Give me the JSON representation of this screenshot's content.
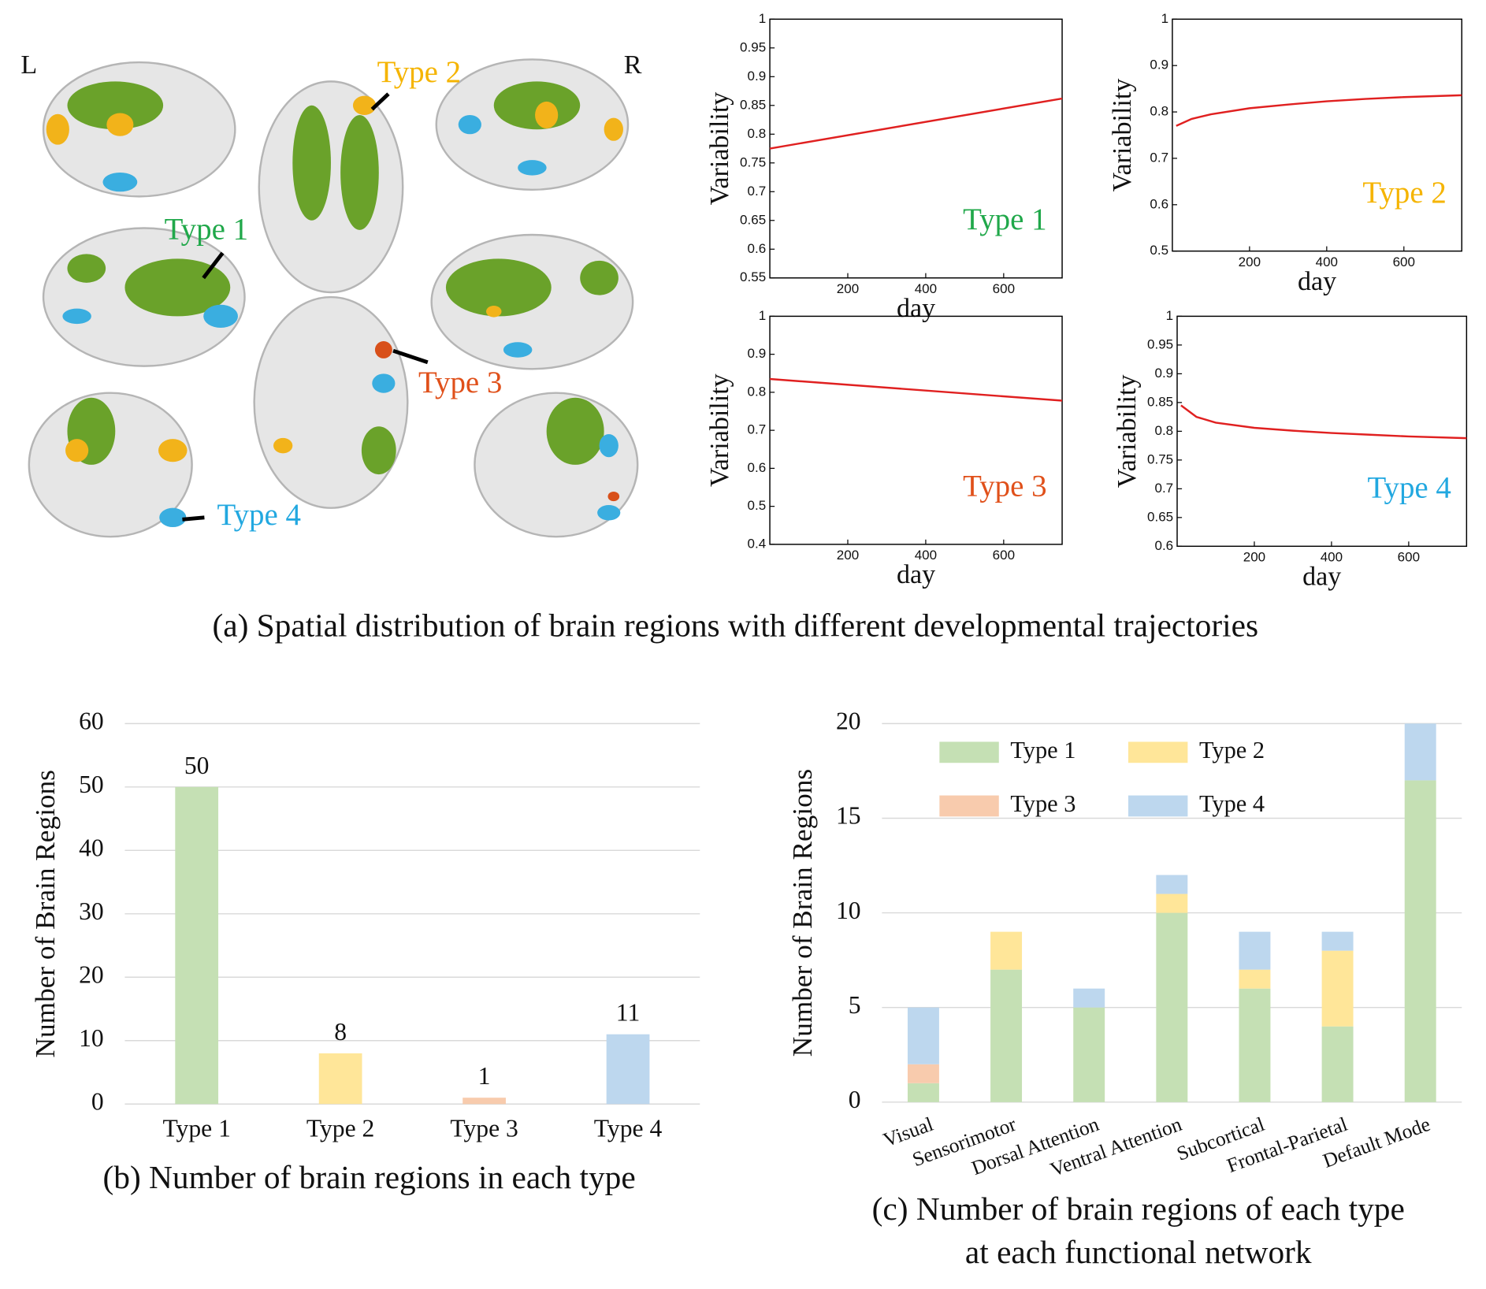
{
  "brain_panel": {
    "left_label": "L",
    "right_label": "R",
    "annotations": [
      {
        "text": "Type 1",
        "color": "#20a84a"
      },
      {
        "text": "Type 2",
        "color": "#f5b400"
      },
      {
        "text": "Type 3",
        "color": "#e0501a"
      },
      {
        "text": "Type 4",
        "color": "#22a8e0"
      }
    ],
    "caption": "(a) Spatial distribution of brain regions with different developmental trajectories"
  },
  "chart_data": [
    {
      "type": "line",
      "xlabel": "day",
      "ylabel": "Variability",
      "annotation": "Type 1",
      "annotation_color": "#20a84a",
      "xlim": [
        0,
        750
      ],
      "xticks": [
        200,
        400,
        600
      ],
      "ylim": [
        0.55,
        1
      ],
      "yticks": [
        0.55,
        0.6,
        0.65,
        0.7,
        0.75,
        0.8,
        0.85,
        0.9,
        0.95,
        1
      ],
      "series": [
        {
          "name": "fit",
          "color": "#e02020",
          "x": [
            0,
            750
          ],
          "values": [
            0.775,
            0.862
          ]
        }
      ]
    },
    {
      "type": "line",
      "xlabel": "day",
      "ylabel": "Variability",
      "annotation": "Type 2",
      "annotation_color": "#f5b400",
      "xlim": [
        0,
        750
      ],
      "xticks": [
        200,
        400,
        600
      ],
      "ylim": [
        0.5,
        1
      ],
      "yticks": [
        0.5,
        0.6,
        0.7,
        0.8,
        0.9,
        1
      ],
      "series": [
        {
          "name": "fit",
          "color": "#e02020",
          "x": [
            10,
            50,
            100,
            200,
            300,
            400,
            500,
            600,
            750
          ],
          "values": [
            0.77,
            0.785,
            0.795,
            0.808,
            0.816,
            0.823,
            0.828,
            0.832,
            0.836
          ]
        }
      ]
    },
    {
      "type": "line",
      "xlabel": "day",
      "ylabel": "Variability",
      "annotation": "Type 3",
      "annotation_color": "#e0501a",
      "xlim": [
        0,
        750
      ],
      "xticks": [
        200,
        400,
        600
      ],
      "ylim": [
        0.4,
        1
      ],
      "yticks": [
        0.4,
        0.5,
        0.6,
        0.7,
        0.8,
        0.9,
        1
      ],
      "series": [
        {
          "name": "fit",
          "color": "#e02020",
          "x": [
            0,
            750
          ],
          "values": [
            0.835,
            0.778
          ]
        }
      ]
    },
    {
      "type": "line",
      "xlabel": "day",
      "ylabel": "Variability",
      "annotation": "Type 4",
      "annotation_color": "#22a8e0",
      "xlim": [
        0,
        750
      ],
      "xticks": [
        200,
        400,
        600
      ],
      "ylim": [
        0.6,
        1
      ],
      "yticks": [
        0.6,
        0.65,
        0.7,
        0.75,
        0.8,
        0.85,
        0.9,
        0.95,
        1
      ],
      "series": [
        {
          "name": "fit",
          "color": "#e02020",
          "x": [
            10,
            50,
            100,
            200,
            300,
            400,
            500,
            600,
            750
          ],
          "values": [
            0.845,
            0.825,
            0.815,
            0.806,
            0.801,
            0.797,
            0.794,
            0.791,
            0.788
          ]
        }
      ]
    },
    {
      "type": "bar",
      "ylabel": "Number of Brain Regions",
      "caption": "(b) Number of brain regions in each type",
      "categories": [
        "Type 1",
        "Type 2",
        "Type 3",
        "Type 4"
      ],
      "values": [
        50,
        8,
        1,
        11
      ],
      "colors": [
        "#c5e0b4",
        "#ffe699",
        "#f8cbad",
        "#bdd7ee"
      ],
      "ylim": [
        0,
        60
      ],
      "yticks": [
        0,
        10,
        20,
        30,
        40,
        50,
        60
      ],
      "grid": true
    },
    {
      "type": "stacked_bar",
      "ylabel": "Number of Brain Regions",
      "caption": [
        "(c) Number of brain regions of each type",
        "at each functional network"
      ],
      "categories": [
        "Visual",
        "Sensorimotor",
        "Dorsal Attention",
        "Ventral Attention",
        "Subcortical",
        "Frontal-Parietal",
        "Default Mode"
      ],
      "series": [
        {
          "name": "Type 1",
          "color": "#c5e0b4",
          "values": [
            1,
            7,
            5,
            10,
            6,
            4,
            17
          ]
        },
        {
          "name": "Type 2",
          "color": "#ffe699",
          "values": [
            0,
            2,
            0,
            1,
            1,
            4,
            0
          ]
        },
        {
          "name": "Type 3",
          "color": "#f8cbad",
          "values": [
            1,
            0,
            0,
            0,
            0,
            0,
            0
          ]
        },
        {
          "name": "Type 4",
          "color": "#bdd7ee",
          "values": [
            3,
            0,
            1,
            1,
            2,
            1,
            3
          ]
        }
      ],
      "ylim": [
        0,
        20
      ],
      "yticks": [
        0,
        5,
        10,
        15,
        20
      ],
      "grid": true,
      "legend": "upper left"
    }
  ]
}
